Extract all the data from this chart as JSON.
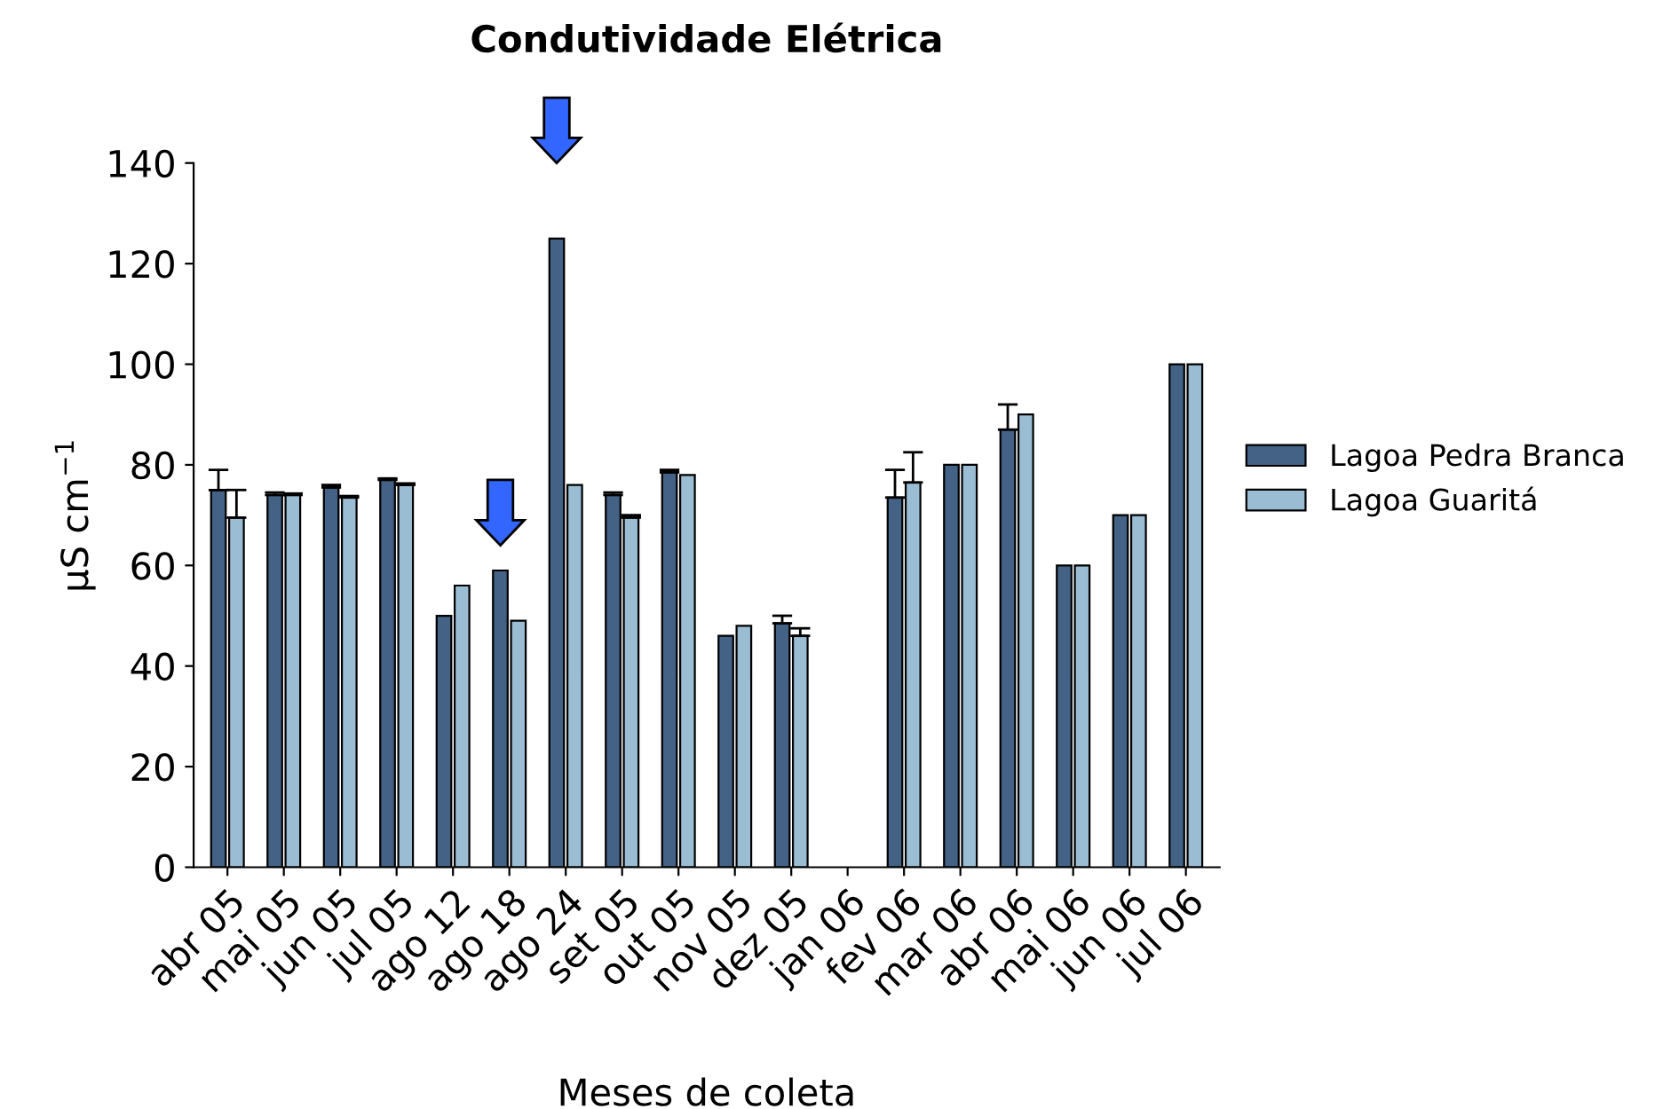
{
  "chart_data": {
    "type": "bar",
    "title": "Condutividade Elétrica",
    "xlabel": "Meses de coleta",
    "ylabel": "µS cm$^{−1}$",
    "categories": [
      "abr 05",
      "mai 05",
      "jun 05",
      "jul 05",
      "ago 12",
      "ago 18",
      "ago 24",
      "set 05",
      "out 05",
      "nov 05",
      "dez 05",
      "jan 06",
      "fev 06",
      "mar 06",
      "abr 06",
      "mai 06",
      "jun 06",
      "jul 06"
    ],
    "series": [
      {
        "name": "Lagoa Pedra Branca",
        "color": "#436286",
        "values": [
          75,
          74,
          75.5,
          77,
          50,
          59,
          125,
          74,
          78.5,
          46,
          48.5,
          null,
          73.5,
          80,
          87,
          60,
          70,
          100
        ],
        "errors": [
          [
            75,
            79
          ],
          [
            74,
            74.5
          ],
          [
            75.5,
            76
          ],
          [
            77,
            77.3
          ],
          null,
          null,
          null,
          [
            74,
            74.5
          ],
          [
            78.5,
            79
          ],
          null,
          [
            48.5,
            50
          ],
          null,
          [
            73.5,
            79
          ],
          null,
          [
            87,
            92
          ],
          null,
          null,
          null
        ]
      },
      {
        "name": "Lagoa Guaritá",
        "color": "#9bbdd3",
        "values": [
          69.5,
          74,
          73.5,
          76,
          56,
          49,
          76,
          69.5,
          78,
          48,
          46,
          null,
          76.5,
          80,
          90,
          60,
          70,
          100
        ],
        "errors": [
          [
            69.5,
            75
          ],
          [
            74,
            74.3
          ],
          [
            73.5,
            73.8
          ],
          [
            76,
            76.3
          ],
          null,
          null,
          null,
          [
            69.5,
            70
          ],
          null,
          null,
          [
            46,
            47.5
          ],
          null,
          [
            76.5,
            82.5
          ],
          null,
          null,
          null,
          null,
          null
        ]
      }
    ],
    "ylim": [
      0,
      140
    ],
    "yticks": [
      0,
      20,
      40,
      60,
      80,
      100,
      120,
      140
    ],
    "grid": false,
    "legend": "right"
  }
}
